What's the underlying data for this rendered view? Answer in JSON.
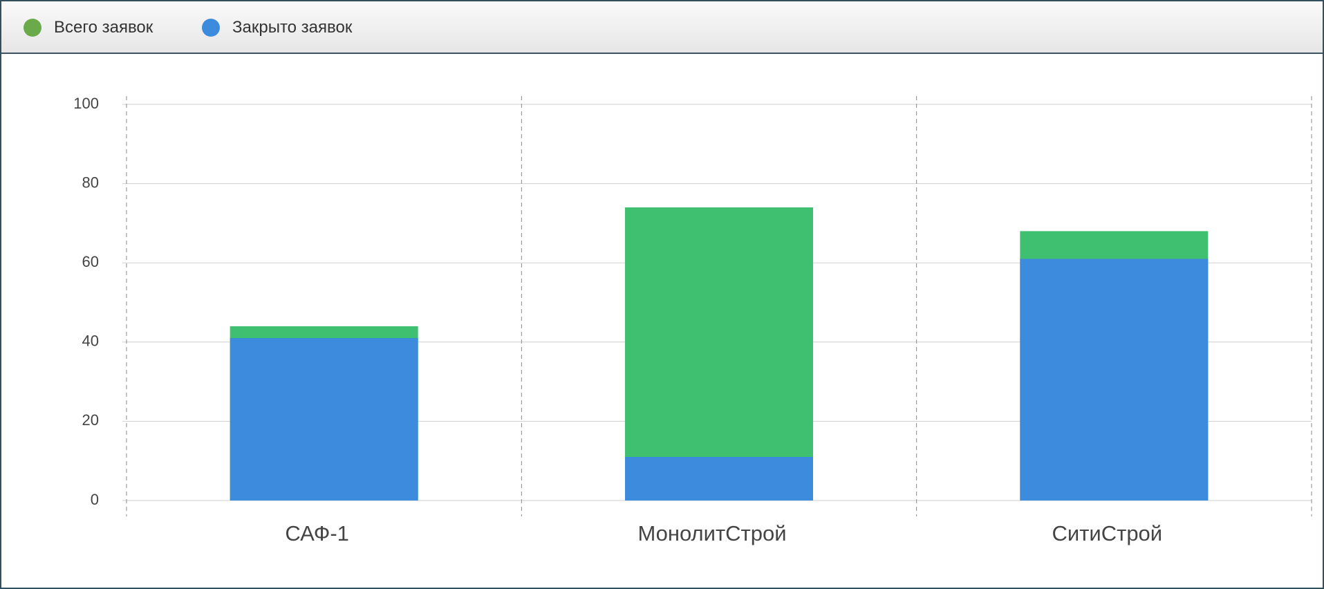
{
  "chart_data": {
    "type": "bar",
    "overlap": true,
    "categories": [
      "САФ-1",
      "МонолитСтрой",
      "СитиСтрой"
    ],
    "series": [
      {
        "name": "Всего заявок",
        "color": "#3fbf70",
        "values": [
          44,
          74,
          68
        ]
      },
      {
        "name": "Закрыто заявок",
        "color": "#3d8bdc",
        "values": [
          41,
          11,
          61
        ]
      }
    ],
    "legend_colors": [
      "#6aaa4a",
      "#3d8bdc"
    ],
    "ylim": [
      0,
      100
    ],
    "yticks": [
      0,
      20,
      40,
      60,
      80,
      100
    ],
    "grid": true
  }
}
